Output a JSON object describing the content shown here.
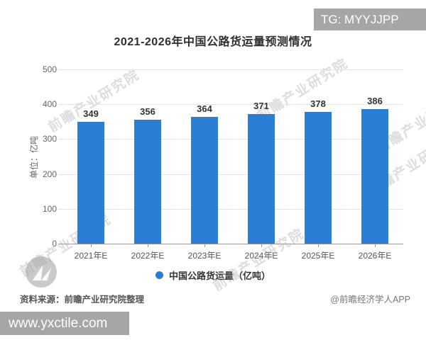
{
  "overlays": {
    "top_right_badge": "TG: MYYJJPP",
    "bottom_left_badge": "www.yxctile.com"
  },
  "chart_data": {
    "type": "bar",
    "title": "2021-2026年中国公路货运量预测情况",
    "categories": [
      "2021年E",
      "2022年E",
      "2023年E",
      "2024年E",
      "2025年E",
      "2026年E"
    ],
    "values": [
      349,
      356,
      364,
      371,
      378,
      386
    ],
    "ylabel": "单位：亿吨",
    "ylim": [
      0,
      500
    ],
    "yticks": [
      0,
      100,
      200,
      300,
      400,
      500
    ],
    "grid": true,
    "legend": "中国公路货运量（亿吨）",
    "legend_position": "bottom",
    "bar_color": "#2b7ed3",
    "value_labels": true
  },
  "footer": {
    "source": "资料来源：前瞻产业研究院整理",
    "credit": "@前瞻经济学人APP"
  },
  "watermark": {
    "text": "前瞻产业研究院"
  }
}
